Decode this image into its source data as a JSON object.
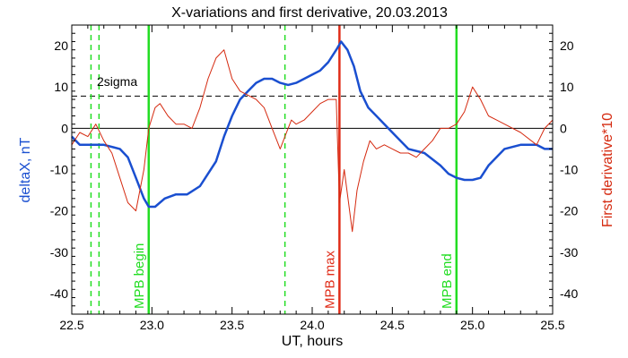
{
  "chart_data": {
    "type": "line",
    "title": "X-variations and first derivative, 20.03.2013",
    "xlabel": "UT, hours",
    "ylabel_left": "deltaX, nT",
    "ylabel_right": "First derivative*10",
    "xlim": [
      22.5,
      25.5
    ],
    "ylim": [
      -45,
      25
    ],
    "x_ticks": [
      "22.5",
      "23.0",
      "23.5",
      "24.0",
      "24.5",
      "25.0",
      "25.5"
    ],
    "y_ticks": [
      "20",
      "10",
      "0",
      "-10",
      "-20",
      "-30",
      "-40"
    ],
    "grid": false,
    "colors": {
      "deltaX": "#1a4fd0",
      "derivative": "#d52a10",
      "mpb": "#22dd22",
      "mpb_max": "#e02c18",
      "sigma": "#000000",
      "zero": "#000000"
    },
    "reference_lines": {
      "zero": 0,
      "two_sigma": 7.8
    },
    "two_sigma_label": "2sigma",
    "series": [
      {
        "name": "deltaX",
        "x": [
          22.5,
          22.55,
          22.6,
          22.7,
          22.8,
          22.85,
          22.9,
          22.95,
          22.98,
          23.02,
          23.08,
          23.15,
          23.22,
          23.3,
          23.35,
          23.4,
          23.45,
          23.5,
          23.55,
          23.6,
          23.65,
          23.7,
          23.75,
          23.8,
          23.85,
          23.9,
          23.95,
          24.0,
          24.05,
          24.1,
          24.15,
          24.18,
          24.22,
          24.26,
          24.3,
          24.35,
          24.4,
          24.45,
          24.5,
          24.55,
          24.6,
          24.7,
          24.8,
          24.85,
          24.9,
          24.95,
          25.0,
          25.05,
          25.1,
          25.2,
          25.3,
          25.4,
          25.45,
          25.5
        ],
        "y": [
          -2,
          -4,
          -4,
          -4,
          -5,
          -7,
          -12,
          -17,
          -19,
          -19,
          -17,
          -16,
          -16,
          -14,
          -11,
          -8,
          -2,
          3,
          7,
          9,
          11,
          12,
          12,
          11,
          10.5,
          11,
          12,
          13,
          14,
          16,
          19,
          21,
          19,
          15,
          9,
          5,
          3,
          1,
          -1,
          -3,
          -5,
          -6,
          -9,
          -11,
          -12,
          -12.5,
          -12.5,
          -12,
          -9,
          -5,
          -4,
          -4,
          -5,
          -5
        ]
      },
      {
        "name": "First derivative*10",
        "x": [
          22.5,
          22.55,
          22.6,
          22.65,
          22.7,
          22.75,
          22.8,
          22.85,
          22.9,
          22.95,
          22.98,
          23.02,
          23.05,
          23.1,
          23.15,
          23.2,
          23.25,
          23.3,
          23.35,
          23.4,
          23.45,
          23.5,
          23.55,
          23.6,
          23.65,
          23.7,
          23.75,
          23.8,
          23.83,
          23.87,
          23.9,
          23.95,
          24.0,
          24.05,
          24.1,
          24.15,
          24.17,
          24.2,
          24.25,
          24.28,
          24.32,
          24.36,
          24.4,
          24.45,
          24.5,
          24.55,
          24.6,
          24.65,
          24.7,
          24.75,
          24.8,
          24.85,
          24.9,
          24.95,
          25.0,
          25.05,
          25.1,
          25.15,
          25.2,
          25.3,
          25.4,
          25.45,
          25.5
        ],
        "y": [
          -4,
          -1,
          -2,
          1,
          -3,
          -6,
          -12,
          -18,
          -20,
          -10,
          0,
          5,
          6,
          3,
          1,
          1,
          0,
          5,
          12,
          17,
          19,
          12,
          9,
          8,
          7,
          5,
          0,
          -5,
          -2,
          2,
          1,
          2,
          4,
          6,
          7,
          7,
          -18,
          -10,
          -25,
          -15,
          -8,
          -3,
          -5,
          -4,
          -5,
          -6,
          -6,
          -7,
          -5,
          -3,
          0,
          0,
          1,
          4,
          10,
          7,
          3,
          2,
          1,
          -1,
          -4,
          0,
          2
        ]
      }
    ],
    "vertical_lines": [
      {
        "x": 22.62,
        "style": "dashed",
        "color": "#22dd22",
        "label": ""
      },
      {
        "x": 22.67,
        "style": "dashed",
        "color": "#22dd22",
        "label": ""
      },
      {
        "x": 22.98,
        "style": "solid",
        "color": "#22dd22",
        "label": "MPB begin"
      },
      {
        "x": 23.83,
        "style": "dashed",
        "color": "#22dd22",
        "label": ""
      },
      {
        "x": 24.17,
        "style": "solid",
        "color": "#e02c18",
        "label": "MPB max"
      },
      {
        "x": 24.9,
        "style": "solid",
        "color": "#22dd22",
        "label": "MPB end"
      }
    ]
  }
}
